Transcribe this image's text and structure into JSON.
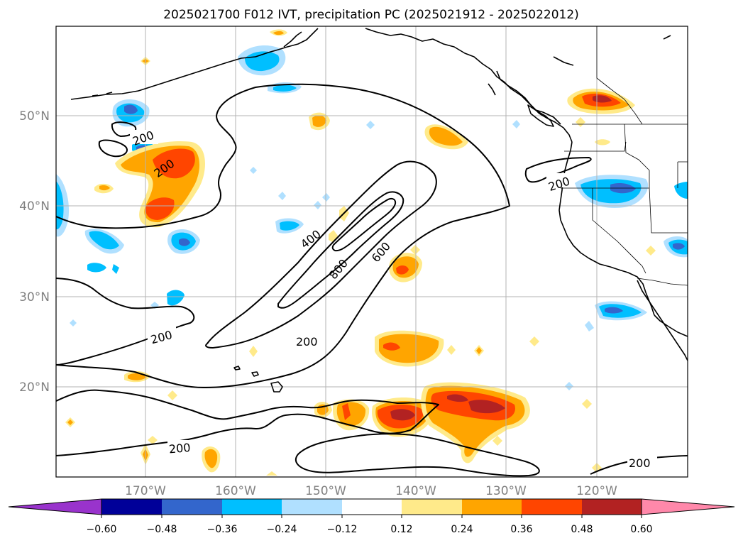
{
  "title": "2025021700 F012 IVT, precipitation PC (2025021912 - 2025022012)",
  "map": {
    "lon_ticks": [
      {
        "value": -170,
        "label": "170°W"
      },
      {
        "value": -160,
        "label": "160°W"
      },
      {
        "value": -150,
        "label": "150°W"
      },
      {
        "value": -140,
        "label": "140°W"
      },
      {
        "value": -130,
        "label": "130°W"
      },
      {
        "value": -120,
        "label": "120°W"
      }
    ],
    "lat_ticks": [
      {
        "value": 50,
        "label": "50°N"
      },
      {
        "value": 40,
        "label": "40°N"
      },
      {
        "value": 30,
        "label": "30°N"
      },
      {
        "value": 20,
        "label": "20°N"
      }
    ],
    "ivt_contour_labels": [
      "200",
      "200",
      "200",
      "200",
      "200",
      "200",
      "400",
      "600",
      "800"
    ],
    "gridlines": true,
    "tick_label_color": "#808080"
  },
  "colorbar": {
    "ticks": [
      "−0.60",
      "−0.48",
      "−0.36",
      "−0.24",
      "−0.12",
      "0.12",
      "0.24",
      "0.36",
      "0.48",
      "0.60"
    ],
    "colors": [
      "#9933cc",
      "#000099",
      "#3366cc",
      "#00bfff",
      "#b0e0ff",
      "#ffffff",
      "#ffea8a",
      "#ffa500",
      "#ff4500",
      "#b22222",
      "#ff88aa"
    ]
  }
}
